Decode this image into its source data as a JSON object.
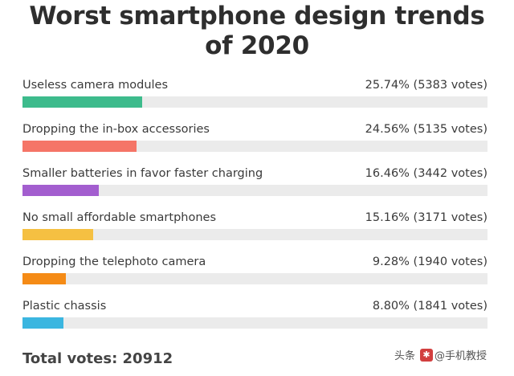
{
  "title": "Worst smartphone design trends of 2020",
  "chart_data": {
    "type": "bar",
    "title": "Worst smartphone design trends of 2020",
    "categories": [
      "Useless camera modules",
      "Dropping the in-box accessories",
      "Smaller batteries in favor faster charging",
      "No small affordable smartphones",
      "Dropping the telephoto camera",
      "Plastic chassis"
    ],
    "values": [
      25.74,
      24.56,
      16.46,
      15.16,
      9.28,
      8.8
    ],
    "votes": [
      5383,
      5135,
      3442,
      3171,
      1940,
      1841
    ],
    "result_labels": [
      "25.74% (5383 votes)",
      "24.56% (5135 votes)",
      "16.46% (3442 votes)",
      "15.16% (3171 votes)",
      "9.28% (1940 votes)",
      "8.80% (1841 votes)"
    ],
    "colors": [
      "#3dbb8c",
      "#f57567",
      "#a35ecf",
      "#f5c042",
      "#f58b16",
      "#3bb6e0"
    ],
    "track_color": "#ebebeb",
    "xlim": [
      0,
      100
    ],
    "orientation": "horizontal",
    "grid": false
  },
  "total_votes": "Total votes: 20912",
  "watermark": {
    "prefix": "头条",
    "handle": "@手机教授",
    "logo_char": "@"
  }
}
